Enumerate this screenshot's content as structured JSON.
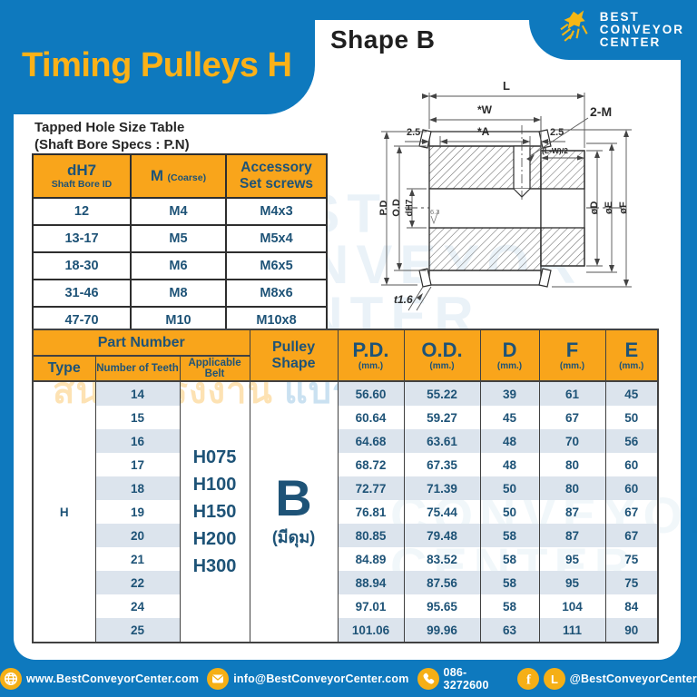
{
  "header": {
    "title": "Timing Pulleys H",
    "shape_heading": "Shape B",
    "logo": {
      "line1": "BEST",
      "line2": "CONVEYOR",
      "line3": "CENTER"
    }
  },
  "tapped_hole_table": {
    "title_line1": "Tapped Hole Size Table",
    "title_line2": "(Shaft Bore Specs : P.N)",
    "headers": {
      "col1_main": "dH7",
      "col1_sub": "Shaft Bore ID",
      "col2_main": "M",
      "col2_sub": "(Coarse)",
      "col3_line1": "Accessory",
      "col3_line2": "Set screws"
    },
    "rows": [
      {
        "bore": "12",
        "m": "M4",
        "set_screw": "M4x3"
      },
      {
        "bore": "13-17",
        "m": "M5",
        "set_screw": "M5x4"
      },
      {
        "bore": "18-30",
        "m": "M6",
        "set_screw": "M6x5"
      },
      {
        "bore": "31-46",
        "m": "M8",
        "set_screw": "M8x6"
      },
      {
        "bore": "47-70",
        "m": "M10",
        "set_screw": "M10x8"
      }
    ]
  },
  "main_table": {
    "headers": {
      "part_number": "Part Number",
      "type": "Type",
      "number_of_teeth": "Number of Teeth",
      "applicable_belt": "Applicable Belt",
      "pulley_shape": "Pulley Shape",
      "pd": "P.D.",
      "od": "O.D.",
      "d": "D",
      "f": "F",
      "e": "E",
      "unit": "(mm.)"
    },
    "type_value": "H",
    "applicable_belts": [
      "H075",
      "H100",
      "H150",
      "H200",
      "H300"
    ],
    "pulley_shape_value": "B",
    "pulley_shape_note": "(มีดุม)",
    "rows": [
      {
        "teeth": "14",
        "pd": "56.60",
        "od": "55.22",
        "d": "39",
        "f": "61",
        "e": "45"
      },
      {
        "teeth": "15",
        "pd": "60.64",
        "od": "59.27",
        "d": "45",
        "f": "67",
        "e": "50"
      },
      {
        "teeth": "16",
        "pd": "64.68",
        "od": "63.61",
        "d": "48",
        "f": "70",
        "e": "56"
      },
      {
        "teeth": "17",
        "pd": "68.72",
        "od": "67.35",
        "d": "48",
        "f": "80",
        "e": "60"
      },
      {
        "teeth": "18",
        "pd": "72.77",
        "od": "71.39",
        "d": "50",
        "f": "80",
        "e": "60"
      },
      {
        "teeth": "19",
        "pd": "76.81",
        "od": "75.44",
        "d": "50",
        "f": "87",
        "e": "67"
      },
      {
        "teeth": "20",
        "pd": "80.85",
        "od": "79.48",
        "d": "58",
        "f": "87",
        "e": "67"
      },
      {
        "teeth": "21",
        "pd": "84.89",
        "od": "83.52",
        "d": "58",
        "f": "95",
        "e": "75"
      },
      {
        "teeth": "22",
        "pd": "88.94",
        "od": "87.56",
        "d": "58",
        "f": "95",
        "e": "75"
      },
      {
        "teeth": "24",
        "pd": "97.01",
        "od": "95.65",
        "d": "58",
        "f": "104",
        "e": "84"
      },
      {
        "teeth": "25",
        "pd": "101.06",
        "od": "99.96",
        "d": "63",
        "f": "111",
        "e": "90"
      }
    ]
  },
  "diagram": {
    "dim_l": "L",
    "dim_w": "*W",
    "dim_a": "*A",
    "dim_25_left": "2.5",
    "dim_25_right": "2.5",
    "dim_lw2": "(L-W)/2",
    "dim_2m": "2-M",
    "dim_pd": "P.D",
    "dim_od": "O.D",
    "dim_dh7": "dH7",
    "dim_roughness": "6.3",
    "dim_d": "øD",
    "dim_e": "øE",
    "dim_f": "øF",
    "dim_t": "t1.6"
  },
  "watermark": {
    "thai_part1": "สินค้าโรงงาน",
    "thai_part2": "แบรนด์ไทยครบวงจร"
  },
  "footer": {
    "website": "www.BestConveyorCenter.com",
    "email": "info@BestConveyorCenter.com",
    "phone": "086-3272600",
    "social_handle": "@BestConveyorCenter"
  },
  "colors": {
    "blue": "#0E79BE",
    "yellow": "#F9A51B",
    "navy": "#1E5377",
    "stripe": "#DCE4ED",
    "title_yellow": "#FBB118"
  }
}
